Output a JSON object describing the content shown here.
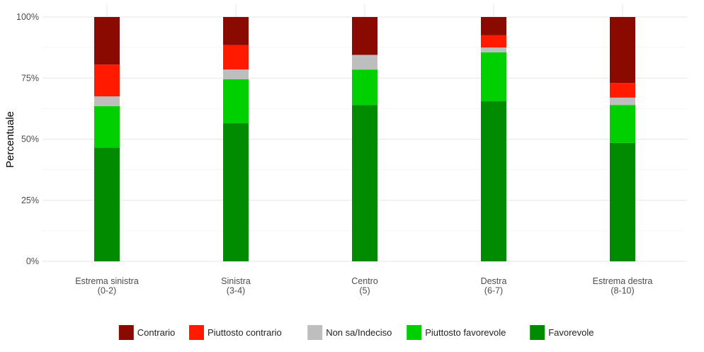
{
  "chart_data": {
    "type": "bar",
    "stacked": true,
    "orientation": "vertical",
    "ylabel": "Percentuale",
    "xlabel": "",
    "ylim": [
      0,
      100
    ],
    "y_ticks": [
      "0%",
      "25%",
      "50%",
      "75%",
      "100%"
    ],
    "grid": true,
    "legend_position": "bottom",
    "categories": [
      [
        "Estrema sinistra",
        "(0-2)"
      ],
      [
        "Sinistra",
        "(3-4)"
      ],
      [
        "Centro",
        "(5)"
      ],
      [
        "Destra",
        "(6-7)"
      ],
      [
        "Estrema destra",
        "(8-10)"
      ]
    ],
    "series": [
      {
        "name": "Favorevole",
        "color": "#008b00",
        "values": [
          46.5,
          56.5,
          64.0,
          65.5,
          48.5
        ]
      },
      {
        "name": "Piuttosto favorevole",
        "color": "#00d000",
        "values": [
          17.0,
          18.0,
          14.5,
          20.0,
          15.5
        ]
      },
      {
        "name": "Non sa/Indeciso",
        "color": "#bebebe",
        "values": [
          4.0,
          4.0,
          6.0,
          2.0,
          3.0
        ]
      },
      {
        "name": "Piuttosto contrario",
        "color": "#ff1a00",
        "values": [
          13.0,
          10.0,
          0.0,
          5.0,
          6.0
        ]
      },
      {
        "name": "Contrario",
        "color": "#8b0a00",
        "values": [
          19.5,
          11.5,
          15.5,
          7.5,
          27.0
        ]
      }
    ],
    "legend_order": [
      "Contrario",
      "Piuttosto contrario",
      "Non sa/Indeciso",
      "Piuttosto favorevole",
      "Favorevole"
    ]
  }
}
